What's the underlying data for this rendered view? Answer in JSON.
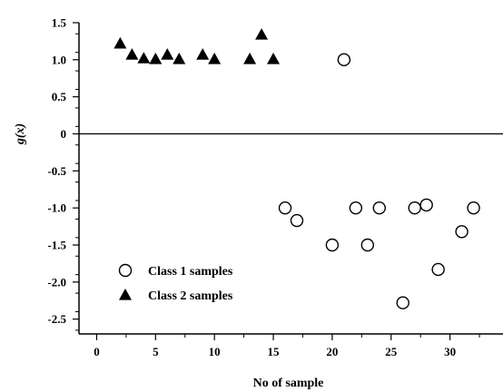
{
  "chart_data": {
    "type": "scatter",
    "xlabel": "No of sample",
    "ylabel": "g(x)",
    "xlim": [
      -1.5,
      34.5
    ],
    "ylim": [
      -2.7,
      1.5
    ],
    "xticks": [
      0,
      5,
      10,
      15,
      20,
      25,
      30
    ],
    "yticks": [
      1.5,
      1.0,
      0.5,
      0,
      -0.5,
      -1.0,
      -1.5,
      -2.0,
      -2.5
    ],
    "ytick_labels": [
      "1.5",
      "1.0",
      "0.5",
      "0",
      "-0.5",
      "-1.0",
      "-1.5",
      "-2.0",
      "-2.5"
    ],
    "reference_line_y": 0,
    "grid": false,
    "legend_position": "bottom-left",
    "series": [
      {
        "name": "Class 1 samples",
        "marker": "open-circle",
        "color": "#000000",
        "points": [
          [
            16,
            -1.0
          ],
          [
            17,
            -1.17
          ],
          [
            20,
            -1.5
          ],
          [
            21,
            1.0
          ],
          [
            22,
            -1.0
          ],
          [
            23,
            -1.5
          ],
          [
            24,
            -1.0
          ],
          [
            26,
            -2.28
          ],
          [
            27,
            -1.0
          ],
          [
            28,
            -0.96
          ],
          [
            29,
            -1.83
          ],
          [
            31,
            -1.32
          ],
          [
            32,
            -1.0
          ]
        ]
      },
      {
        "name": "Class 2 samples",
        "marker": "filled-triangle",
        "color": "#000000",
        "points": [
          [
            2,
            1.22
          ],
          [
            3,
            1.07
          ],
          [
            4,
            1.02
          ],
          [
            5,
            1.01
          ],
          [
            6,
            1.07
          ],
          [
            7,
            1.01
          ],
          [
            9,
            1.07
          ],
          [
            10,
            1.01
          ],
          [
            13,
            1.01
          ],
          [
            14,
            1.34
          ],
          [
            15,
            1.01
          ]
        ]
      }
    ]
  }
}
